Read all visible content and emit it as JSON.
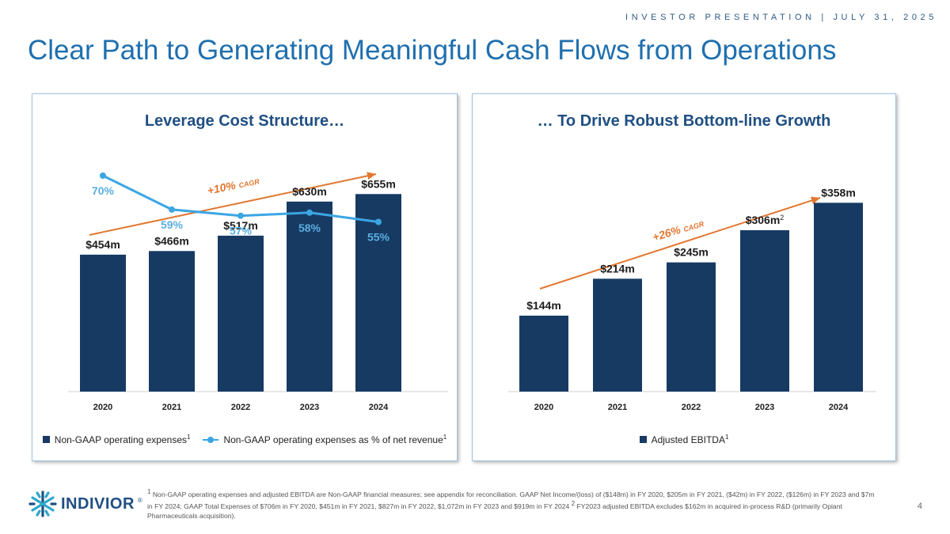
{
  "header": {
    "topline": "INVESTOR PRESENTATION | JULY 31, 2025",
    "title": "Clear Path to Generating Meaningful Cash Flows from Operations"
  },
  "colors": {
    "bar": "#173a63",
    "line": "#3ba6e4",
    "cagr": "#e2772f",
    "title": "#1f6fae"
  },
  "left_panel": {
    "title": "Leverage Cost Structure…",
    "cagr_value": "+10%",
    "cagr_label": "CAGR",
    "legend": {
      "bars": "Non-GAAP operating expenses",
      "bars_sup": "1",
      "line": "Non-GAAP operating expenses as % of net revenue",
      "line_sup": "1"
    }
  },
  "right_panel": {
    "title": "… To Drive Robust Bottom-line Growth",
    "cagr_value": "+26%",
    "cagr_label": "CAGR",
    "legend": {
      "bars": "Adjusted EBITDA",
      "bars_sup": "1"
    }
  },
  "chart_data": [
    {
      "type": "bar",
      "title": "Leverage Cost Structure…",
      "categories": [
        "2020",
        "2021",
        "2022",
        "2023",
        "2024"
      ],
      "ylim": [
        0,
        800
      ],
      "series": [
        {
          "name": "Non-GAAP operating expenses",
          "values": [
            454,
            466,
            517,
            630,
            655
          ],
          "labels": [
            "$454m",
            "$466m",
            "$517m",
            "$630m",
            "$655m"
          ]
        },
        {
          "name": "Non-GAAP operating expenses as % of net revenue",
          "type": "line",
          "values": [
            70,
            59,
            57,
            58,
            55
          ],
          "labels": [
            "70%",
            "59%",
            "57%",
            "58%",
            "55%"
          ],
          "ylim": [
            0,
            100
          ]
        }
      ],
      "annotation": "+10% CAGR"
    },
    {
      "type": "bar",
      "title": "… To Drive Robust Bottom-line Growth",
      "categories": [
        "2020",
        "2021",
        "2022",
        "2023",
        "2024"
      ],
      "ylim": [
        0,
        450
      ],
      "series": [
        {
          "name": "Adjusted EBITDA",
          "values": [
            144,
            214,
            245,
            306,
            358
          ],
          "labels": [
            "$144m",
            "$214m",
            "$245m",
            "$306m",
            "$358m"
          ],
          "label_sups": [
            "",
            "",
            "",
            "2",
            ""
          ]
        }
      ],
      "annotation": "+26% CAGR"
    }
  ],
  "footnote": {
    "sup1": "1",
    "text1": " Non-GAAP operating expenses and adjusted EBITDA are Non-GAAP financial measures; see appendix for reconciliation. GAAP Net Income/(loss) of ($148m) in FY 2020, $205m in FY 2021, ($42m) in FY 2022, ($126m) in FY 2023 and $7m in FY 2024; GAAP Total Expenses of $706m in FY 2020, $451m in FY 2021, $827m in FY 2022, $1,072m in FY 2023 and $919m in FY 2024 ",
    "sup2": "2",
    "text2": " FY2023 adjusted EBITDA excludes $162m in acquired in-process R&D (primarily Opiant Pharmaceuticals acquisition)."
  },
  "logo": {
    "text": "INDIVIOR",
    "mark": "®"
  },
  "page_number": "4"
}
